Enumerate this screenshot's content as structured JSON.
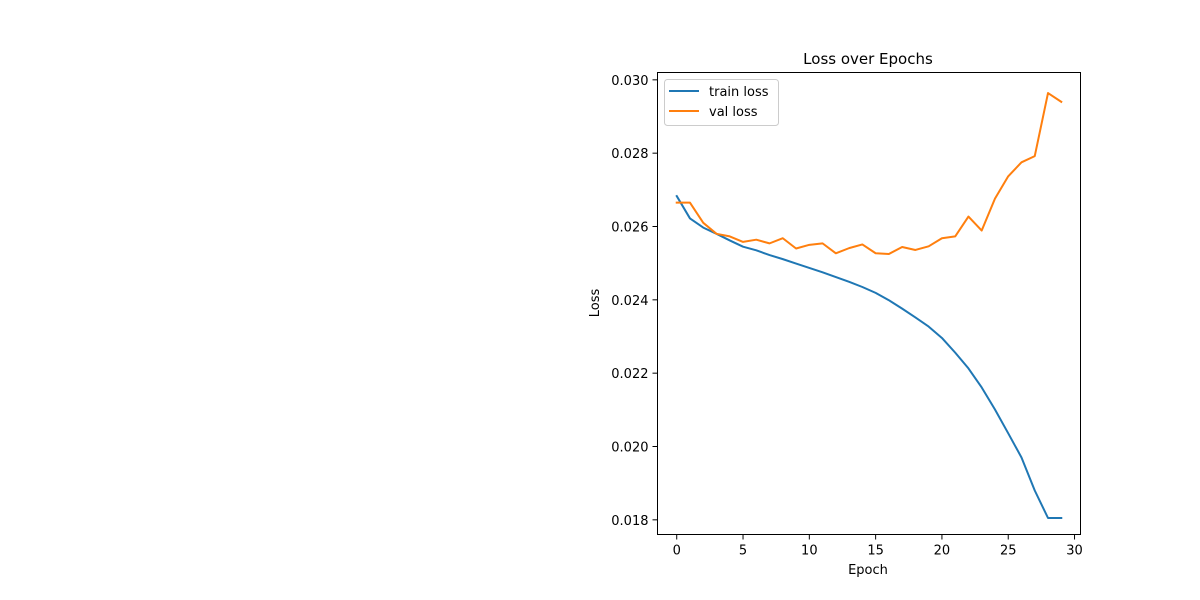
{
  "chart_data": {
    "type": "line",
    "title": "Loss over Epochs",
    "xlabel": "Epoch",
    "ylabel": "Loss",
    "xlim": [
      -1.45,
      30.45
    ],
    "ylim": [
      0.0176,
      0.0302
    ],
    "xticks": [
      0,
      5,
      10,
      15,
      20,
      25,
      30
    ],
    "xtick_labels": [
      "0",
      "5",
      "10",
      "15",
      "20",
      "25",
      "30"
    ],
    "yticks": [
      0.018,
      0.02,
      0.022,
      0.024,
      0.026,
      0.028,
      0.03
    ],
    "ytick_labels": [
      "0.018",
      "0.020",
      "0.022",
      "0.024",
      "0.026",
      "0.028",
      "0.030"
    ],
    "grid": false,
    "legend_position": "upper left",
    "x": [
      0,
      1,
      2,
      3,
      4,
      5,
      6,
      7,
      8,
      9,
      10,
      11,
      12,
      13,
      14,
      15,
      16,
      17,
      18,
      19,
      20,
      21,
      22,
      23,
      24,
      25,
      26,
      27,
      28,
      29
    ],
    "series": [
      {
        "name": "train loss",
        "color": "#1f77b4",
        "values": [
          0.02683,
          0.02622,
          0.02597,
          0.0258,
          0.02562,
          0.02545,
          0.02535,
          0.02522,
          0.02511,
          0.02499,
          0.02487,
          0.02475,
          0.02462,
          0.02449,
          0.02435,
          0.02419,
          0.02399,
          0.02376,
          0.02352,
          0.02327,
          0.02296,
          0.02256,
          0.02213,
          0.02161,
          0.02101,
          0.02036,
          0.0197,
          0.0188,
          0.01805,
          0.01805
        ]
      },
      {
        "name": "val loss",
        "color": "#ff7f0e",
        "values": [
          0.02665,
          0.02665,
          0.0261,
          0.0258,
          0.02573,
          0.02558,
          0.02564,
          0.02554,
          0.02568,
          0.0254,
          0.0255,
          0.02554,
          0.02527,
          0.02541,
          0.02551,
          0.02527,
          0.02525,
          0.02544,
          0.02536,
          0.02546,
          0.02568,
          0.02573,
          0.02627,
          0.02589,
          0.02676,
          0.02737,
          0.02775,
          0.02792,
          0.02964,
          0.0294
        ]
      }
    ]
  }
}
